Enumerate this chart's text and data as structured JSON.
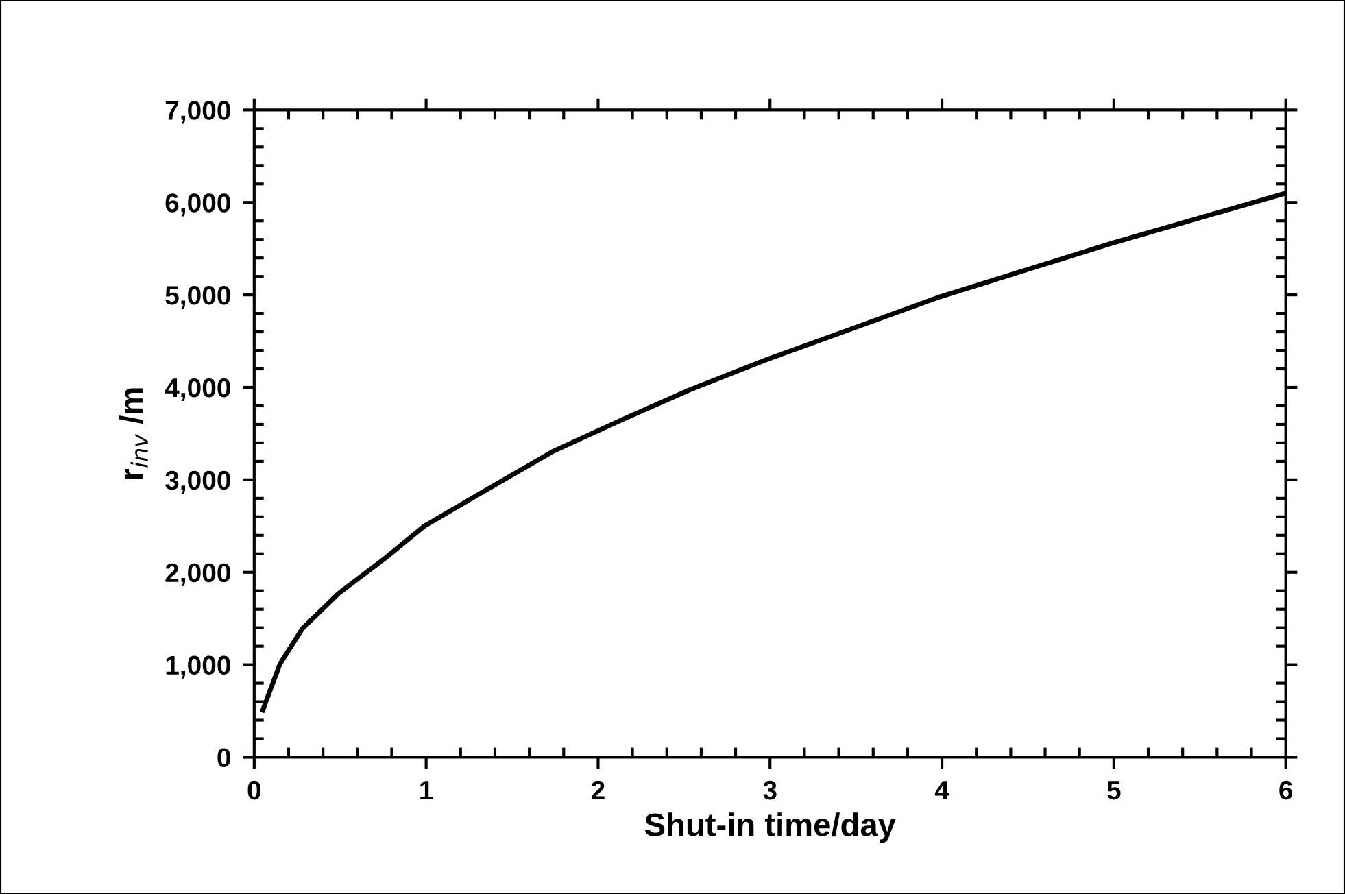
{
  "chart_data": {
    "type": "line",
    "xlabel": "Shut-in time/day",
    "ylabel": "r$_{inv}$ /m",
    "series": [
      {
        "color": "#000000",
        "x": [
          0.05,
          0.15,
          0.28,
          0.49,
          0.76,
          0.99,
          1.34,
          1.74,
          2.14,
          2.53,
          2.98,
          3.99,
          4.99,
          5.98,
          6.0
        ],
        "values": [
          510,
          1010,
          1390,
          1770,
          2150,
          2500,
          2880,
          3310,
          3650,
          3970,
          4300,
          4980,
          5560,
          6090,
          6100
        ]
      }
    ],
    "xlim": [
      0,
      6
    ],
    "xticks": [
      0,
      1,
      2,
      3,
      4,
      5,
      6
    ],
    "ylim": [
      0,
      7000
    ],
    "yticks": [
      0,
      {
        "value": 1000,
        "label": "1,000"
      },
      {
        "value": 2000,
        "label": "2,000"
      },
      {
        "value": 3000,
        "label": "3,000"
      },
      {
        "value": 4000,
        "label": "4,000"
      },
      {
        "value": 5000,
        "label": "5,000"
      },
      {
        "value": 6000,
        "label": "6,000"
      },
      {
        "value": 7000,
        "label": "7,000"
      }
    ],
    "grid": false,
    "marker": "none",
    "line_style": "solid"
  }
}
